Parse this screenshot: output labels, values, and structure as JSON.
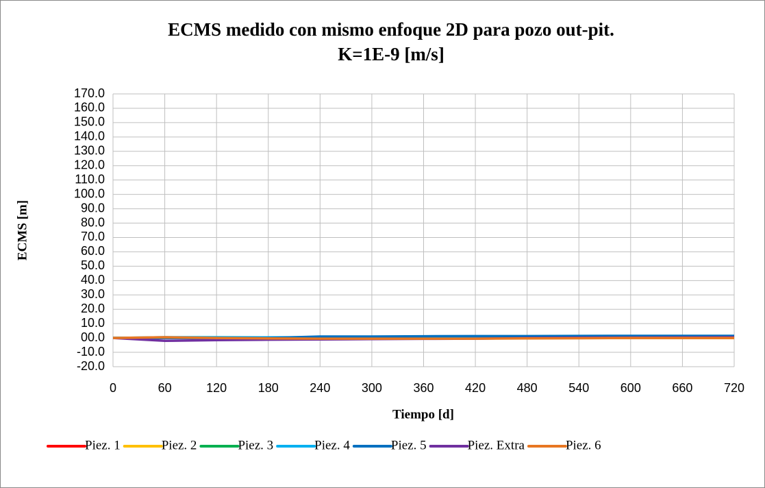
{
  "chart_data": {
    "type": "line",
    "title": "ECMS medido con mismo enfoque 2D para pozo out-pit.",
    "subtitle": "K=1E-9 [m/s]",
    "x_label": "Tiempo [d]",
    "y_label": "ECMS [m]",
    "x": [
      0,
      60,
      120,
      180,
      240,
      300,
      360,
      420,
      480,
      540,
      600,
      660,
      720
    ],
    "series": [
      {
        "name": "Piez. 1",
        "color": "#ff0000",
        "values": [
          0,
          0,
          0,
          0,
          0,
          0,
          0,
          0,
          0,
          0,
          0,
          0,
          0
        ]
      },
      {
        "name": "Piez. 2",
        "color": "#ffc000",
        "values": [
          0,
          0,
          0,
          0,
          0,
          0,
          0,
          0,
          0,
          0,
          0,
          0,
          0
        ]
      },
      {
        "name": "Piez. 3",
        "color": "#00b050",
        "values": [
          0,
          0.3,
          0.3,
          0.2,
          0.3,
          0.3,
          0.3,
          0.3,
          0.3,
          0.3,
          0.3,
          0.3,
          0.3
        ]
      },
      {
        "name": "Piez. 4",
        "color": "#00b0f0",
        "values": [
          0,
          0.5,
          0.5,
          0.4,
          0.5,
          0.5,
          0.5,
          0.5,
          0.5,
          0.5,
          0.5,
          0.5,
          0.5
        ]
      },
      {
        "name": "Piez. 5",
        "color": "#0070c0",
        "values": [
          0,
          0,
          0,
          0,
          1,
          1,
          1.2,
          1.3,
          1.3,
          1.4,
          1.5,
          1.5,
          1.5
        ]
      },
      {
        "name": "Piez. Extra",
        "color": "#7030a0",
        "values": [
          0,
          -2,
          -1.5,
          -1.2,
          -1,
          -0.8,
          -0.6,
          -0.5,
          0,
          0.2,
          0.3,
          0.4,
          0.5
        ]
      },
      {
        "name": "Piez. 6",
        "color": "#e87722",
        "values": [
          0,
          0.5,
          0,
          -0.3,
          -0.5,
          -0.5,
          -0.5,
          -0.5,
          -0.3,
          -0.2,
          0,
          0,
          0
        ]
      }
    ],
    "xlim": [
      0,
      720
    ],
    "xticks": [
      0,
      60,
      120,
      180,
      240,
      300,
      360,
      420,
      480,
      540,
      600,
      660,
      720
    ],
    "ylim": [
      -20,
      170
    ],
    "yticks": [
      {
        "value": -20,
        "label": "-20.0"
      },
      {
        "value": -10,
        "label": "-10.0"
      },
      {
        "value": 0,
        "label": "00.0"
      },
      {
        "value": 10,
        "label": "10.0"
      },
      {
        "value": 20,
        "label": "20.0"
      },
      {
        "value": 30,
        "label": "30.0"
      },
      {
        "value": 40,
        "label": "40.0"
      },
      {
        "value": 50,
        "label": "50.0"
      },
      {
        "value": 60,
        "label": "60.0"
      },
      {
        "value": 70,
        "label": "70.0"
      },
      {
        "value": 80,
        "label": "80.0"
      },
      {
        "value": 90,
        "label": "90.0"
      },
      {
        "value": 100,
        "label": "100.0"
      },
      {
        "value": 110,
        "label": "110.0"
      },
      {
        "value": 120,
        "label": "120.0"
      },
      {
        "value": 130,
        "label": "130.0"
      },
      {
        "value": 140,
        "label": "140.0"
      },
      {
        "value": 150,
        "label": "150.0"
      },
      {
        "value": 160,
        "label": "160.0"
      },
      {
        "value": 170,
        "label": "170.0"
      }
    ],
    "grid": true,
    "legend": "bottom"
  }
}
